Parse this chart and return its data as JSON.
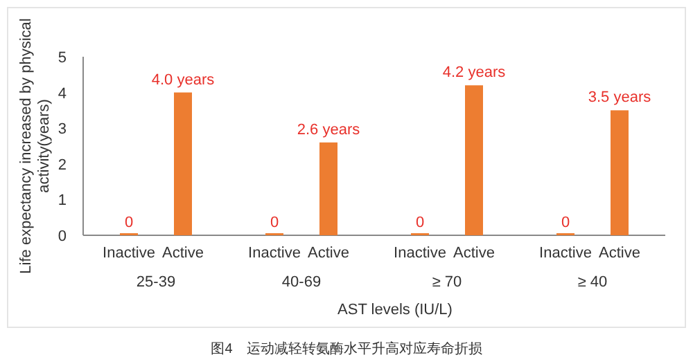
{
  "chart_data": {
    "type": "bar",
    "categories": [
      "25-39",
      "40-69",
      "≥ 70",
      "≥ 40"
    ],
    "series": [
      {
        "name": "Inactive",
        "color": "#ed7d31",
        "values": [
          0,
          0,
          0,
          0
        ],
        "value_labels": [
          "0",
          "0",
          "0",
          "0"
        ]
      },
      {
        "name": "Active",
        "color": "#ed7d31",
        "values": [
          4.0,
          2.6,
          4.2,
          3.5
        ],
        "value_labels": [
          "4.0 years",
          "2.6 years",
          "4.2 years",
          "3.5 years"
        ]
      }
    ],
    "ylabel": "Life expectancy increased by physical activity(years)",
    "xlabel": "AST levels (IU/L)",
    "ylim": [
      0,
      5
    ],
    "yticks": [
      0,
      1,
      2,
      3,
      4,
      5
    ],
    "grid": false,
    "legend": false,
    "annotations": [
      "图4　运动减轻转氨酶水平升高对应寿命折损"
    ]
  }
}
